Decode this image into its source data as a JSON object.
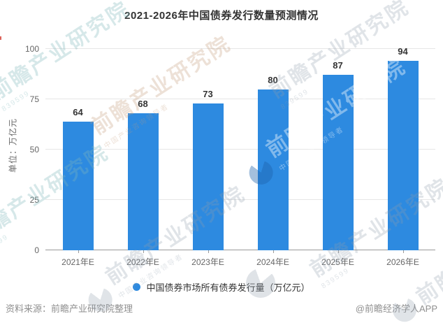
{
  "title": "2021-2026年中国债券发行数量预测情况",
  "y_axis_unit": "单位：万亿元",
  "legend": {
    "label": "中国债券市场所有债券发行量（万亿元）"
  },
  "footer": {
    "source": "资料来源：前瞻产业研究院整理",
    "credit": "@前瞻经济学人APP"
  },
  "watermark": {
    "brand": "前瞻产业研究院",
    "tagline": "中国产业咨询领导者",
    "code": "839599",
    "icon": "pacman-logo-icon"
  },
  "colors": {
    "bar": "#2d8ae0",
    "grid": "#e6e6e6",
    "axis_line": "#999999",
    "title_text": "#333333",
    "tick_label": "#666666",
    "value_label": "#333333",
    "footer_text": "#8f8f8f"
  },
  "chart_data": {
    "type": "bar",
    "categories": [
      "2021年E",
      "2022年E",
      "2023年E",
      "2024年E",
      "2025年E",
      "2026年E"
    ],
    "values": [
      64,
      68,
      73,
      80,
      87,
      94
    ],
    "series_name": "中国债券市场所有债券发行量（万亿元）",
    "title": "2021-2026年中国债券发行数量预测情况",
    "xlabel": "",
    "ylabel": "单位：万亿元",
    "ylim": [
      0,
      100
    ],
    "yticks": [
      0,
      25,
      50,
      75,
      100
    ],
    "grid": true,
    "bar_color": "#2d8ae0",
    "legend_position": "bottom-center",
    "value_labels_shown": true
  }
}
